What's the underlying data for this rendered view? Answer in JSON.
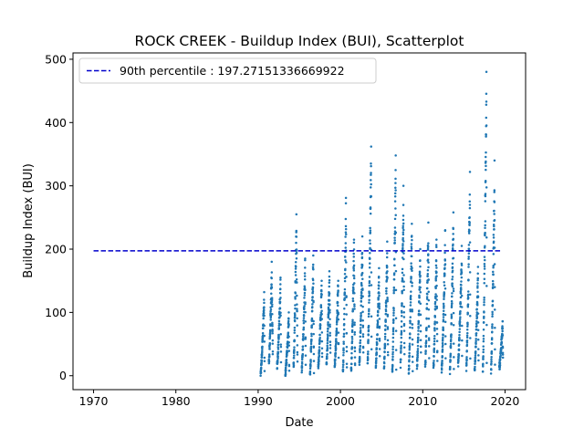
{
  "chart_data": {
    "type": "scatter",
    "title": "ROCK CREEK - Buildup Index (BUI), Scatterplot",
    "xlabel": "Date",
    "ylabel": "Buildup Index (BUI)",
    "xlim": [
      1967.5,
      2022.5
    ],
    "ylim": [
      -22,
      510
    ],
    "xticks": [
      1970,
      1980,
      1990,
      2000,
      2010,
      2020
    ],
    "xtick_labels": [
      "1970",
      "1980",
      "1990",
      "2000",
      "2010",
      "2020"
    ],
    "yticks": [
      0,
      100,
      200,
      300,
      400,
      500
    ],
    "ytick_labels": [
      "0",
      "100",
      "200",
      "300",
      "400",
      "500"
    ],
    "legend": {
      "placement": "top-left",
      "entries": [
        {
          "label": "90th percentile : 197.27151336669922",
          "style": "dashed",
          "color": "#0000cc"
        }
      ]
    },
    "percentile_line": {
      "value": 197.27151336669922,
      "x_range": [
        1970,
        2019.6
      ],
      "color": "#0000cc"
    },
    "point_color": "#1f77b4",
    "season_peaks": [
      {
        "year": 1990,
        "peak": 132
      },
      {
        "year": 1991,
        "peak": 180
      },
      {
        "year": 1992,
        "peak": 155
      },
      {
        "year": 1993,
        "peak": 100
      },
      {
        "year": 1994,
        "peak": 255
      },
      {
        "year": 1995,
        "peak": 185
      },
      {
        "year": 1996,
        "peak": 190
      },
      {
        "year": 1997,
        "peak": 150
      },
      {
        "year": 1998,
        "peak": 165
      },
      {
        "year": 1999,
        "peak": 150
      },
      {
        "year": 2000,
        "peak": 281
      },
      {
        "year": 2001,
        "peak": 215
      },
      {
        "year": 2002,
        "peak": 220
      },
      {
        "year": 2003,
        "peak": 362
      },
      {
        "year": 2004,
        "peak": 170
      },
      {
        "year": 2005,
        "peak": 212
      },
      {
        "year": 2006,
        "peak": 348
      },
      {
        "year": 2007,
        "peak": 300
      },
      {
        "year": 2008,
        "peak": 240
      },
      {
        "year": 2009,
        "peak": 200
      },
      {
        "year": 2010,
        "peak": 242
      },
      {
        "year": 2011,
        "peak": 215
      },
      {
        "year": 2012,
        "peak": 230
      },
      {
        "year": 2013,
        "peak": 258
      },
      {
        "year": 2014,
        "peak": 205
      },
      {
        "year": 2015,
        "peak": 322
      },
      {
        "year": 2016,
        "peak": 172
      },
      {
        "year": 2017,
        "peak": 480
      },
      {
        "year": 2018,
        "peak": 340
      },
      {
        "year": 2019,
        "peak": 86
      }
    ]
  }
}
